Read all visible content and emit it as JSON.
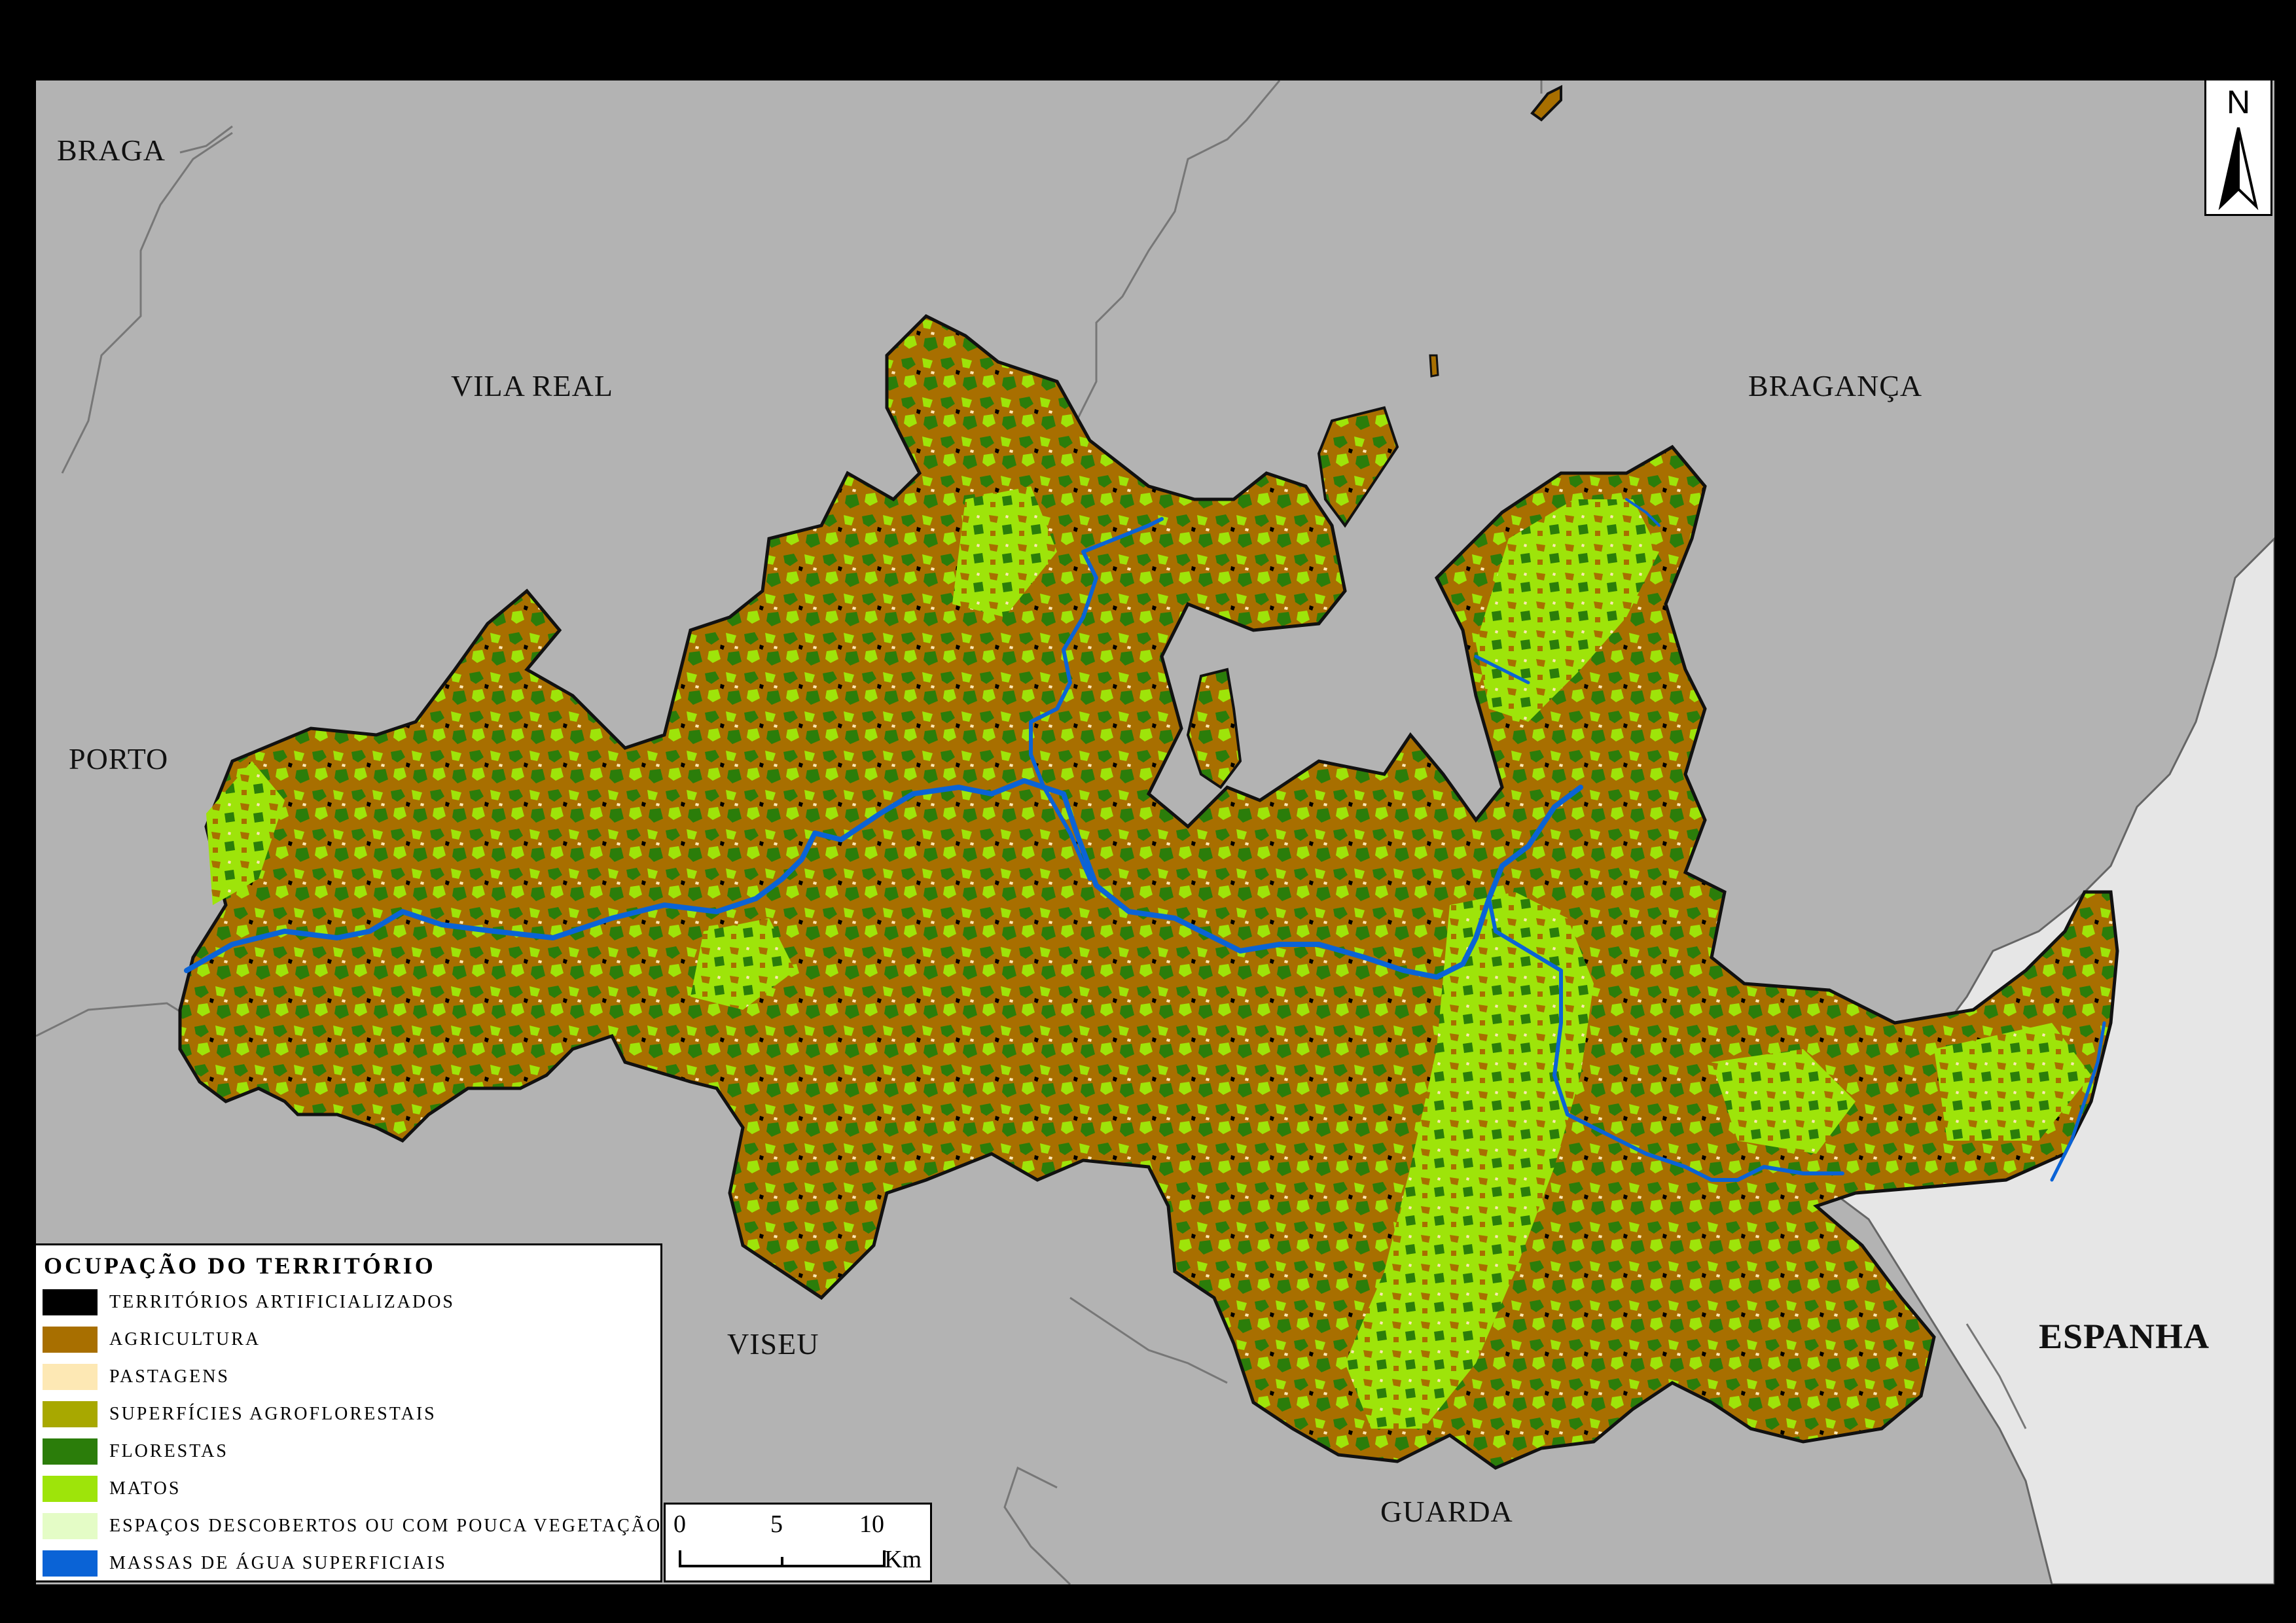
{
  "colors": {
    "background": "#b3b3b3",
    "spain": "#e6e6e6",
    "territorios_artificializados": "#000000",
    "agricultura": "#a86f00",
    "pastagens": "#fde8b4",
    "superficies_agroflorestais": "#a8a800",
    "florestas": "#2b7d0a",
    "matos": "#9ee40a",
    "espacos_descobertos": "#e4fcc6",
    "massas_de_agua": "#0a63d6"
  },
  "districts": [
    {
      "id": "braga",
      "label": "BRAGA"
    },
    {
      "id": "vila-real",
      "label": "VILA REAL"
    },
    {
      "id": "braganca",
      "label": "BRAGANÇA"
    },
    {
      "id": "porto",
      "label": "PORTO"
    },
    {
      "id": "viseu",
      "label": "VISEU"
    },
    {
      "id": "guarda",
      "label": "GUARDA"
    },
    {
      "id": "espanha",
      "label": "ESPANHA"
    }
  ],
  "legend": {
    "title": "OCUPAÇÃO DO TERRITÓRIO",
    "items": [
      {
        "label": "TERRITÓRIOS ARTIFICIALIZADOS",
        "color": "#000000"
      },
      {
        "label": "AGRICULTURA",
        "color": "#a86f00"
      },
      {
        "label": "PASTAGENS",
        "color": "#fde8b4"
      },
      {
        "label": "SUPERFÍCIES AGROFLORESTAIS",
        "color": "#a8a800"
      },
      {
        "label": "FLORESTAS",
        "color": "#2b7d0a"
      },
      {
        "label": "MATOS",
        "color": "#9ee40a"
      },
      {
        "label": "ESPAÇOS DESCOBERTOS OU COM POUCA VEGETAÇÃO",
        "color": "#e4fcc6"
      },
      {
        "label": "MASSAS DE ÁGUA SUPERFICIAIS",
        "color": "#0a63d6"
      }
    ]
  },
  "scale": {
    "ticks": [
      "0",
      "5",
      "10"
    ],
    "unit": "Km"
  },
  "north_label": "N"
}
